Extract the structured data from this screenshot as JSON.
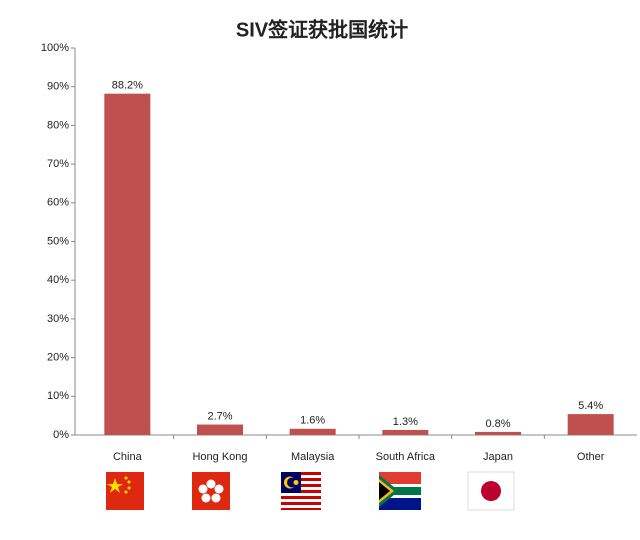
{
  "chart_data": {
    "type": "bar",
    "title": "SIV签证获批国统计",
    "categories": [
      "China",
      "Hong Kong",
      "Malaysia",
      "South Africa",
      "Japan",
      "Other"
    ],
    "values": [
      88.2,
      2.7,
      1.6,
      1.3,
      0.8,
      5.4
    ],
    "value_labels": [
      "88.2%",
      "2.7%",
      "1.6%",
      "1.3%",
      "0.8%",
      "5.4%"
    ],
    "color": "#c0504d",
    "ylim": [
      0,
      100
    ],
    "yticks": [
      {
        "value": 0,
        "label": "0%"
      },
      {
        "value": 10,
        "label": "10%"
      },
      {
        "value": 20,
        "label": "20%"
      },
      {
        "value": 30,
        "label": "30%"
      },
      {
        "value": 40,
        "label": "40%"
      },
      {
        "value": 50,
        "label": "50%"
      },
      {
        "value": 60,
        "label": "60%"
      },
      {
        "value": 70,
        "label": "70%"
      },
      {
        "value": 80,
        "label": "80%"
      },
      {
        "value": 90,
        "label": "90%"
      },
      {
        "value": 100,
        "label": "100%"
      }
    ],
    "grid": false
  }
}
